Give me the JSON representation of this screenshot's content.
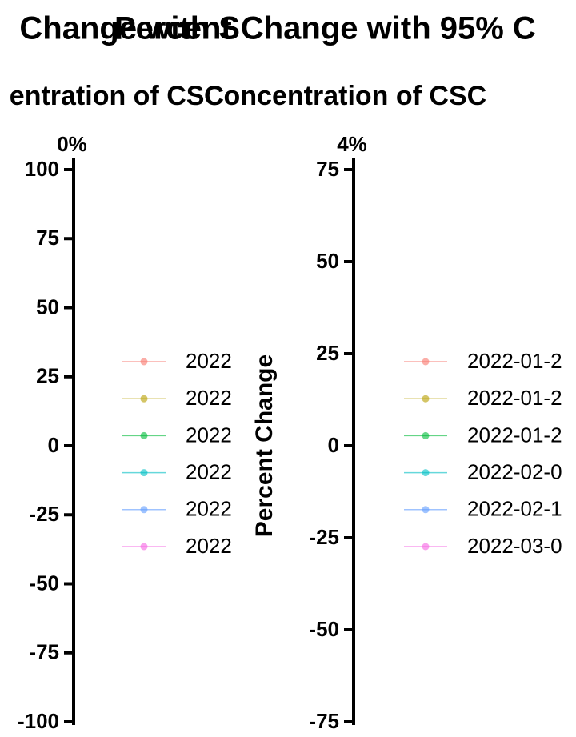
{
  "chart_data": [
    {
      "type": "line",
      "title": "Change with S",
      "subtitle": "entration of CSC",
      "annotation": "0%",
      "ylim": [
        -100,
        100
      ],
      "yticks": [
        -100,
        -75,
        -50,
        -25,
        0,
        25,
        50,
        75,
        100
      ],
      "series": [
        {
          "name": "2022",
          "color": "#f8766d",
          "values": []
        },
        {
          "name": "2022",
          "color": "#b79f00",
          "values": []
        },
        {
          "name": "2022",
          "color": "#00ba38",
          "values": []
        },
        {
          "name": "2022",
          "color": "#00bfc4",
          "values": []
        },
        {
          "name": "2022",
          "color": "#619cff",
          "values": []
        },
        {
          "name": "2022",
          "color": "#f564e3",
          "values": []
        }
      ]
    },
    {
      "type": "line",
      "title": "Percent Change with 95% C",
      "subtitle": "Concentration of CSC",
      "annotation": "4%",
      "ylabel": "Percent Change",
      "ylim": [
        -75,
        75
      ],
      "yticks": [
        -75,
        -50,
        -25,
        0,
        25,
        50,
        75
      ],
      "series": [
        {
          "name": "2022-01-2",
          "color": "#f8766d",
          "values": []
        },
        {
          "name": "2022-01-2",
          "color": "#b79f00",
          "values": []
        },
        {
          "name": "2022-01-2",
          "color": "#00ba38",
          "values": []
        },
        {
          "name": "2022-02-0",
          "color": "#00bfc4",
          "values": []
        },
        {
          "name": "2022-02-1",
          "color": "#619cff",
          "values": []
        },
        {
          "name": "2022-03-0",
          "color": "#f564e3",
          "values": []
        }
      ]
    }
  ]
}
